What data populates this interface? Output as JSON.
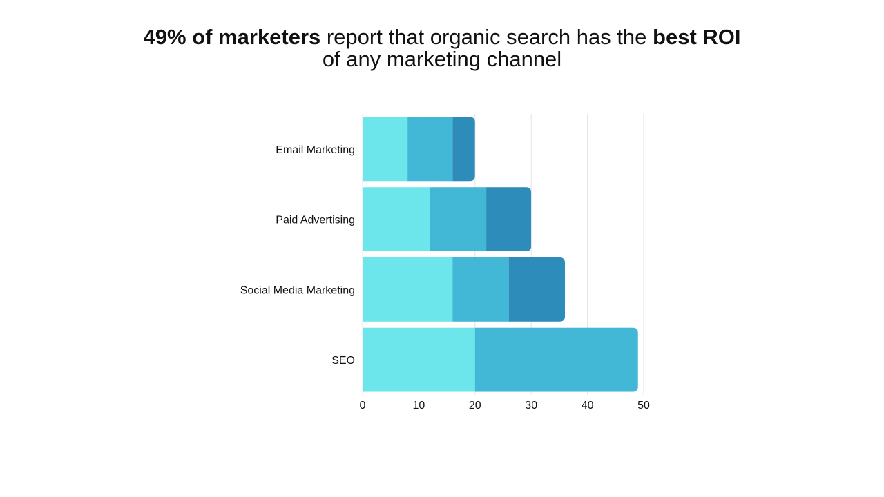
{
  "title": {
    "line1_bold_a": "49% of marketers",
    "line1_regular": " report that organic search has the ",
    "line1_bold_b": "best ROI",
    "line2": "of any marketing channel"
  },
  "chart_data": {
    "type": "bar",
    "orientation": "horizontal",
    "stacked": true,
    "categories": [
      "Email Marketing",
      "Paid Advertising",
      "Social Media Marketing",
      "SEO"
    ],
    "series": [
      {
        "color": "#6ce6ea",
        "values": [
          8,
          12,
          16,
          20
        ]
      },
      {
        "color": "#42b7d6",
        "values": [
          8,
          10,
          10,
          29
        ]
      },
      {
        "color": "#2e8cba",
        "values": [
          4,
          8,
          10,
          0
        ]
      }
    ],
    "xlim": [
      0,
      50
    ],
    "xticks": [
      0,
      10,
      20,
      30,
      40,
      50
    ],
    "grid": true,
    "legend": "none"
  }
}
